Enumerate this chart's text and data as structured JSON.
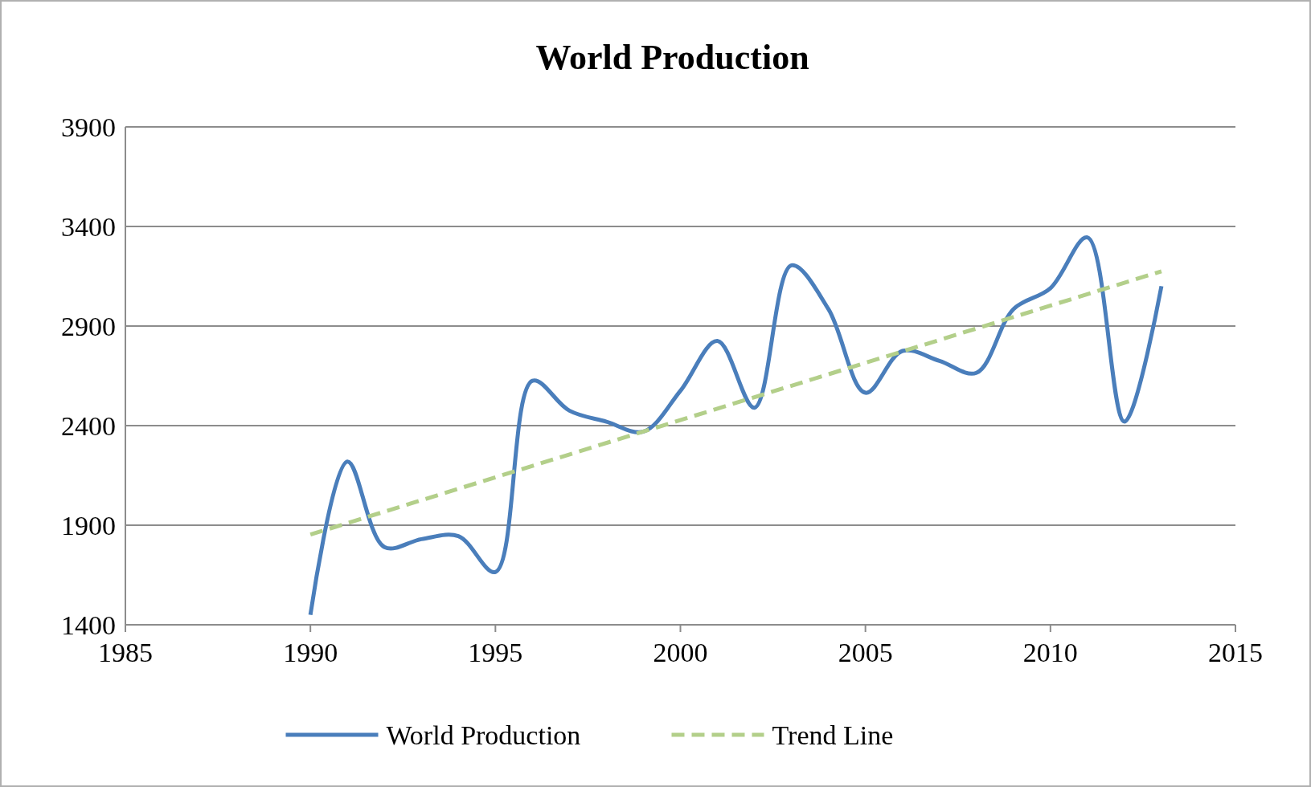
{
  "chart_data": {
    "type": "line",
    "title": "World Production",
    "xlim": [
      1985,
      2015
    ],
    "xticks": [
      1985,
      1990,
      1995,
      2000,
      2005,
      2010,
      2015
    ],
    "ylim": [
      1400,
      3900
    ],
    "yticks": [
      1400,
      1900,
      2400,
      2900,
      3400,
      3900
    ],
    "grid": "y",
    "legend": "bottom",
    "series": [
      {
        "name": "World Production",
        "color": "#4a7ebb",
        "line_style": "solid",
        "x": [
          1990,
          1991,
          1992,
          1993,
          1994,
          1995,
          1996,
          1997,
          1998,
          1999,
          2000,
          2001,
          2002,
          2003,
          2004,
          2005,
          2006,
          2007,
          2008,
          2009,
          2010,
          2011,
          2012,
          2013
        ],
        "values": [
          1450,
          2220,
          1790,
          1830,
          1845,
          1665,
          2625,
          2475,
          2420,
          2370,
          2575,
          2825,
          2490,
          3205,
          2985,
          2565,
          2775,
          2725,
          2665,
          2985,
          3090,
          3345,
          2420,
          3100
        ]
      },
      {
        "name": "Trend Line",
        "color": "#b3cf8a",
        "line_style": "dashed",
        "x": [
          1990,
          2013
        ],
        "values": [
          1853,
          3175
        ]
      }
    ]
  }
}
